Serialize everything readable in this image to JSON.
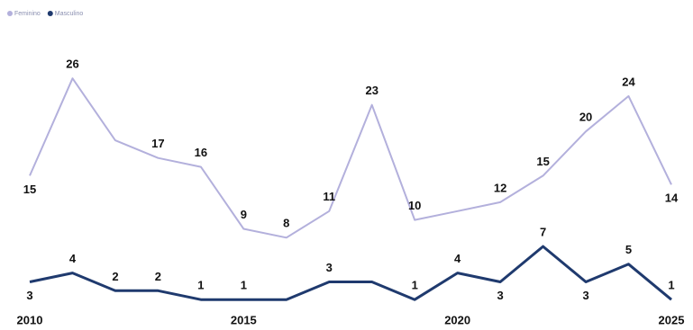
{
  "chart_data": {
    "type": "line",
    "x": [
      2010,
      2011,
      2012,
      2013,
      2014,
      2015,
      2016,
      2017,
      2018,
      2019,
      2020,
      2021,
      2022,
      2023,
      2024,
      2025
    ],
    "xlim": [
      2010,
      2025
    ],
    "xticks": [
      2010,
      2015,
      2020,
      2025
    ],
    "ylim": [
      0,
      31
    ],
    "legend": "top-left",
    "series": [
      {
        "name": "Feminino",
        "color": "#b3b0dc",
        "values": [
          15,
          26,
          19,
          17,
          16,
          9,
          8,
          11,
          23,
          10,
          11,
          12,
          15,
          20,
          24,
          14
        ],
        "value_labels": [
          "15",
          "26",
          null,
          "17",
          "16",
          "9",
          "8",
          "11",
          "23",
          "10",
          null,
          "12",
          "15",
          "20",
          "24",
          "14"
        ]
      },
      {
        "name": "Masculino",
        "color": "#1f3a6e",
        "values": [
          3,
          4,
          2,
          2,
          1,
          1,
          1,
          3,
          3,
          1,
          4,
          3,
          7,
          3,
          5,
          1
        ],
        "value_labels": [
          "3",
          "4",
          "2",
          "2",
          "1",
          "1",
          null,
          "3",
          null,
          "1",
          "4",
          "3",
          "7",
          "3",
          "5",
          "1"
        ]
      }
    ]
  }
}
